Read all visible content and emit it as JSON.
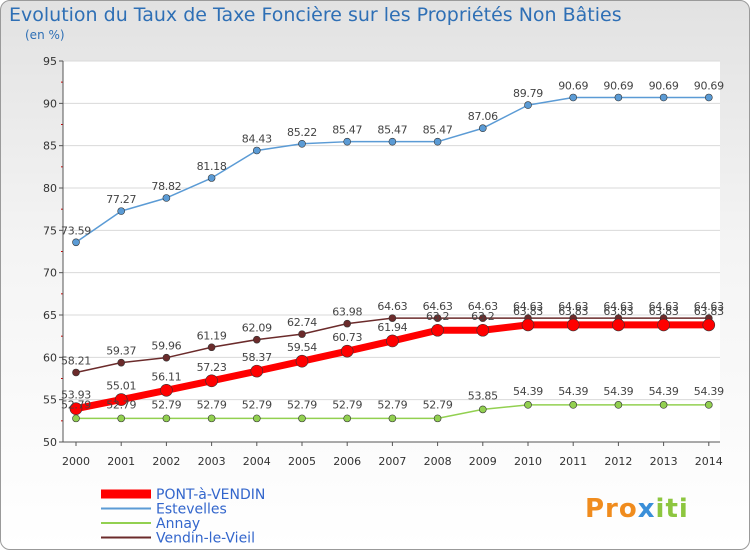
{
  "title": "Evolution du Taux de Taxe Foncière sur les Propriétés Non Bâties",
  "subtitle": "(en %)",
  "logo": {
    "text": "Proxiti"
  },
  "chart_data": {
    "type": "line",
    "x": [
      2000,
      2001,
      2002,
      2003,
      2004,
      2005,
      2006,
      2007,
      2008,
      2009,
      2010,
      2011,
      2012,
      2013,
      2014
    ],
    "xticks": [
      "2000",
      "2001",
      "2002",
      "2003",
      "2004",
      "2005",
      "2006",
      "2007",
      "2008",
      "2009",
      "2010",
      "2011",
      "2012",
      "2013",
      "2014"
    ],
    "ylim": [
      50,
      95
    ],
    "yticks": [
      "50",
      "55",
      "60",
      "65",
      "70",
      "75",
      "80",
      "85",
      "90",
      "95"
    ],
    "grid": "horizontal",
    "legend_position": "bottom-left",
    "series": [
      {
        "name": "Estevelles",
        "color": "#5b9bd5",
        "values": [
          73.59,
          77.27,
          78.82,
          81.18,
          84.43,
          85.22,
          85.47,
          85.47,
          85.47,
          87.06,
          89.79,
          90.69,
          90.69,
          90.69,
          90.69
        ],
        "labels": [
          "73.59",
          "77.27",
          "78.82",
          "81.18",
          "84.43",
          "85.22",
          "85.47",
          "85.47",
          "85.47",
          "87.06",
          "89.79",
          "90.69",
          "90.69",
          "90.69",
          "90.69"
        ]
      },
      {
        "name": "Vendin-le-Vieil",
        "color": "#6b2b2b",
        "values": [
          58.21,
          59.37,
          59.96,
          61.19,
          62.09,
          62.74,
          63.98,
          64.63,
          64.63,
          64.63,
          64.63,
          64.63,
          64.63,
          64.63,
          64.63
        ],
        "labels": [
          "58.21",
          "59.37",
          "59.96",
          "61.19",
          "62.09",
          "62.74",
          "63.98",
          "64.63",
          "64.63",
          "64.63",
          "64.63",
          "64.63",
          "64.63",
          "64.63",
          "64.63"
        ]
      },
      {
        "name": "PONT-à-VENDIN",
        "color": "#ff0000",
        "values": [
          53.93,
          55.01,
          56.11,
          57.23,
          58.37,
          59.54,
          60.73,
          61.94,
          63.2,
          63.2,
          63.83,
          63.83,
          63.83,
          63.83,
          63.83
        ],
        "labels": [
          "53.93",
          "55.01",
          "56.11",
          "57.23",
          "58.37",
          "59.54",
          "60.73",
          "61.94",
          "63.2",
          "63.2",
          "63.83",
          "63.83",
          "63.83",
          "63.83",
          "63.83"
        ]
      },
      {
        "name": "Annay",
        "color": "#92d050",
        "values": [
          52.79,
          52.79,
          52.79,
          52.79,
          52.79,
          52.79,
          52.79,
          52.79,
          52.79,
          53.85,
          54.39,
          54.39,
          54.39,
          54.39,
          54.39
        ],
        "labels": [
          "52.79",
          "52.79",
          "52.79",
          "52.79",
          "52.79",
          "52.79",
          "52.79",
          "52.79",
          "52.79",
          "53.85",
          "54.39",
          "54.39",
          "54.39",
          "54.39",
          "54.39"
        ]
      }
    ],
    "legend": [
      {
        "name": "PONT-à-VENDIN",
        "color": "#ff0000"
      },
      {
        "name": "Estevelles",
        "color": "#5b9bd5"
      },
      {
        "name": "Annay",
        "color": "#92d050"
      },
      {
        "name": "Vendin-le-Vieil",
        "color": "#6b2b2b"
      }
    ]
  }
}
